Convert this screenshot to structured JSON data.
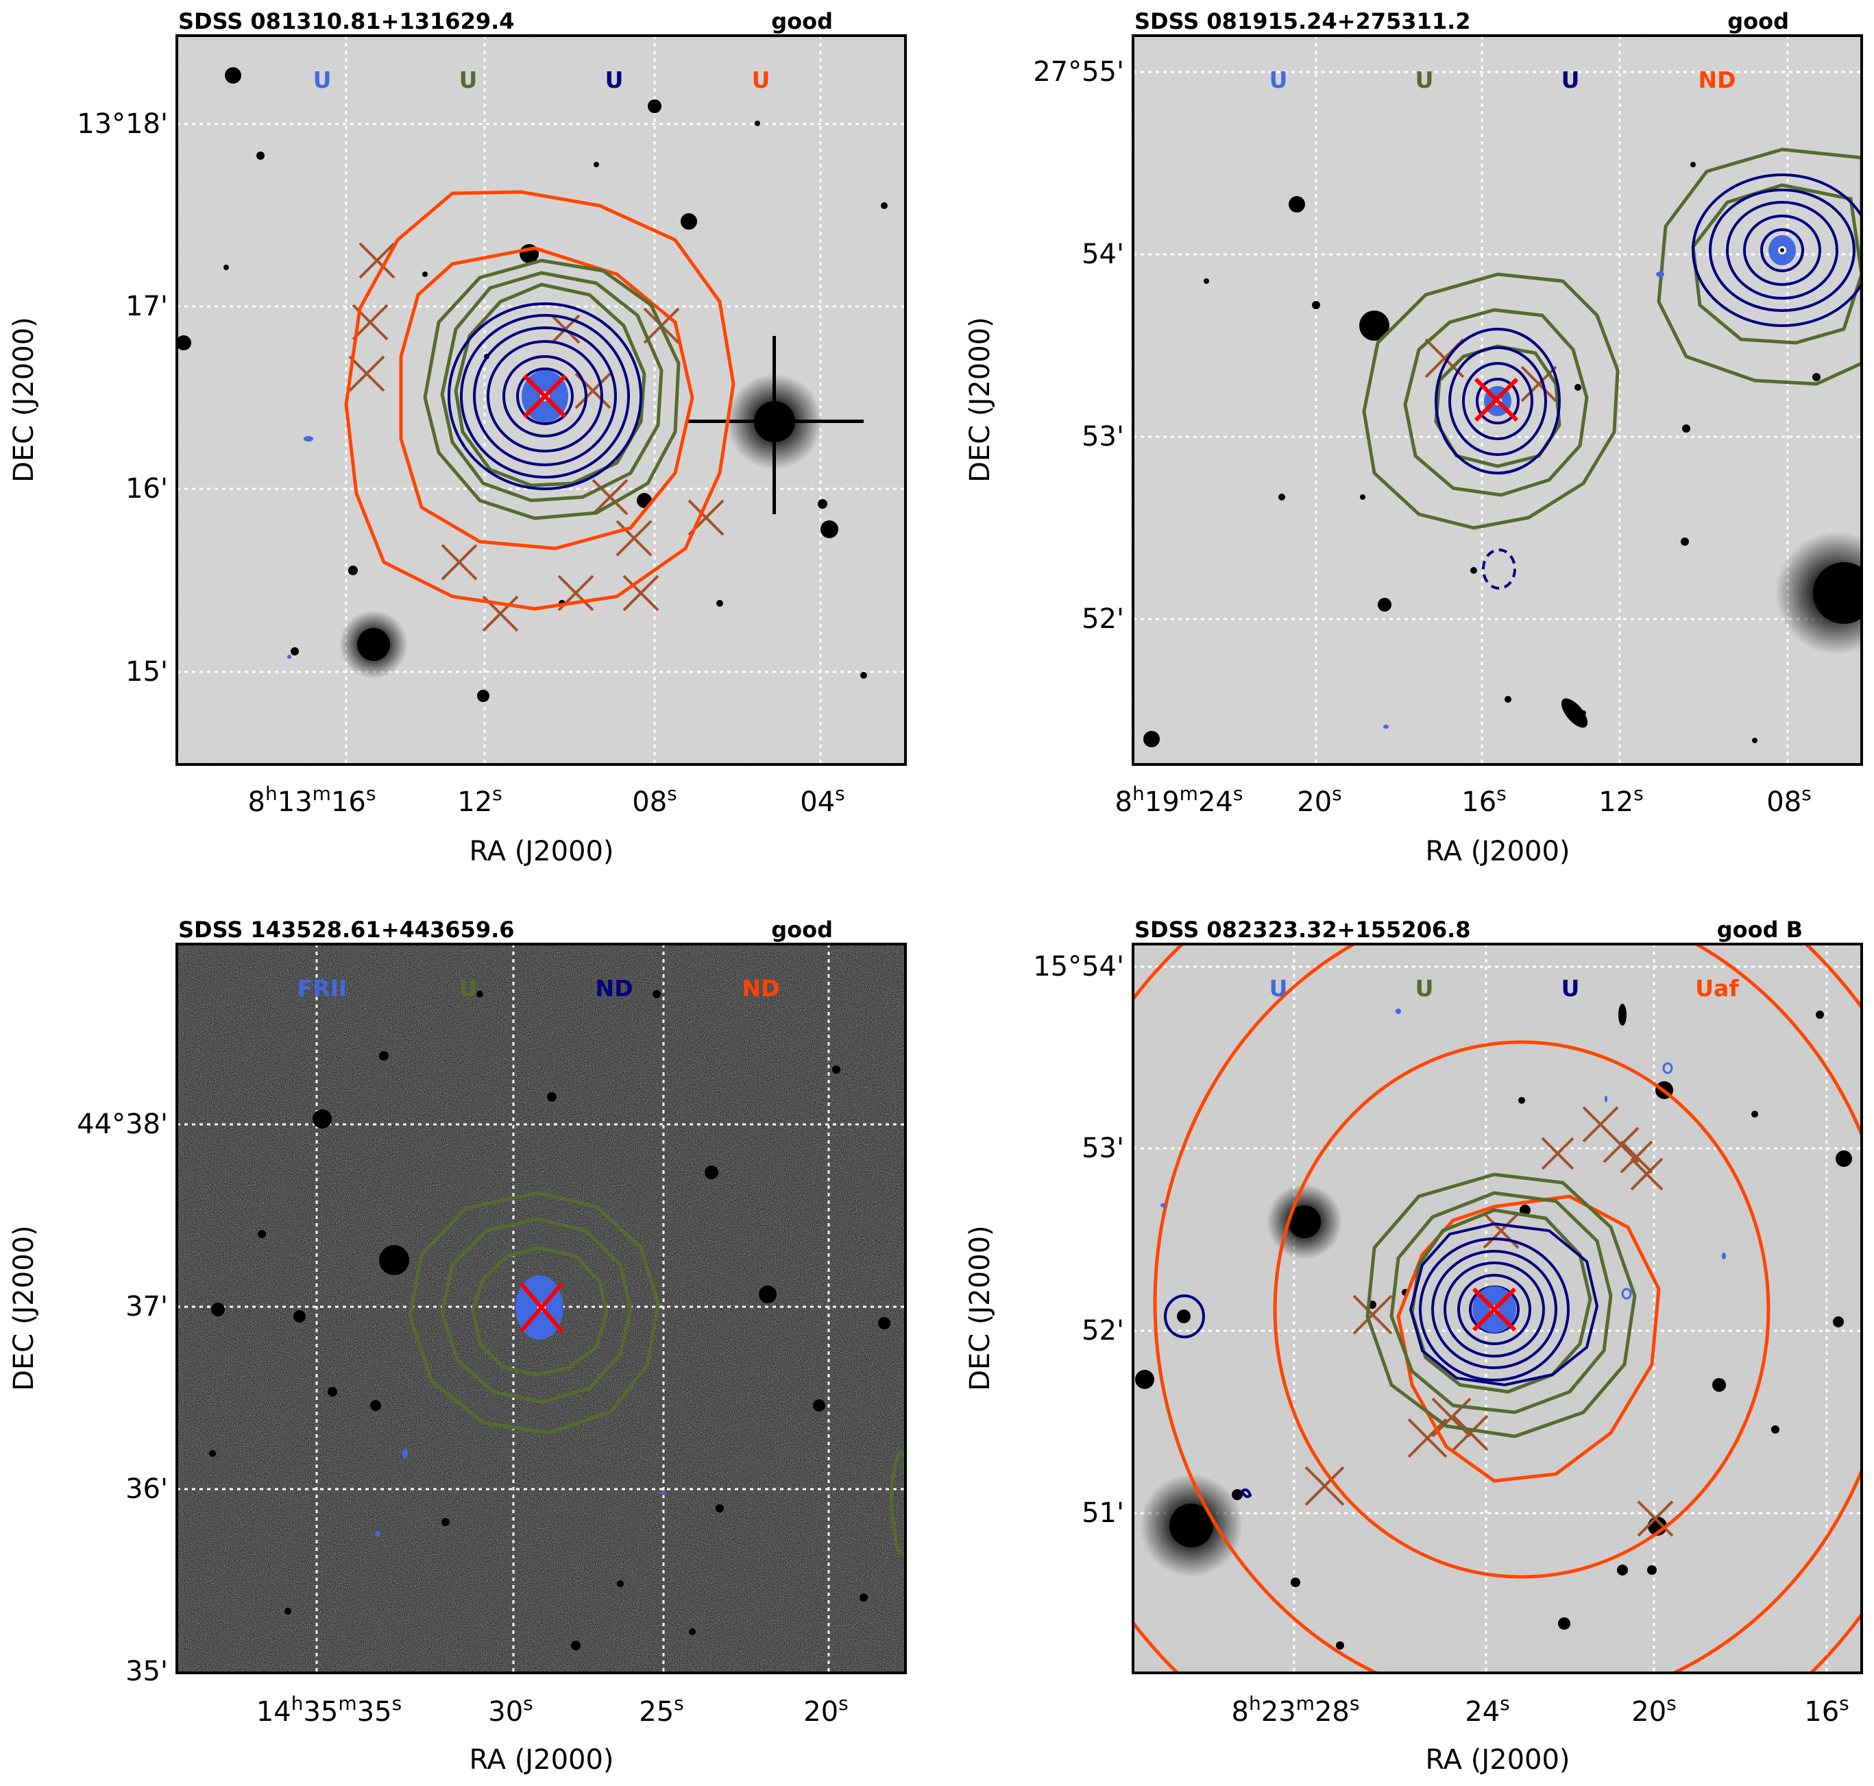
{
  "colors": {
    "radio": "#4169e1",
    "green": "#556b2f",
    "navy": "#000080",
    "orange": "#ff4500",
    "cross_brown": "#a0522d",
    "cross_red": "#ff0000",
    "sky": "#d9d9d9"
  },
  "panels": [
    {
      "id": "p1",
      "title": "SDSS 081310.81+131629.4",
      "quality": "good",
      "flags": [
        "U",
        "U",
        "U",
        "U"
      ],
      "ra_ticks": [
        {
          "h": "8",
          "m": "13",
          "s": "16"
        },
        {
          "s": "12"
        },
        {
          "s": "08"
        },
        {
          "s": "04"
        }
      ],
      "dec_ticks": [
        "13°18'",
        "17'",
        "16'",
        "15'"
      ],
      "xlabel": "RA (J2000)",
      "ylabel": "DEC (J2000)"
    },
    {
      "id": "p2",
      "title": "SDSS 081915.24+275311.2",
      "quality": "good",
      "flags": [
        "U",
        "U",
        "U",
        "ND"
      ],
      "ra_ticks": [
        {
          "h": "8",
          "m": "19",
          "s": "24"
        },
        {
          "s": "20"
        },
        {
          "s": "16"
        },
        {
          "s": "12"
        },
        {
          "s": "08"
        }
      ],
      "dec_ticks": [
        "27°55'",
        "54'",
        "53'",
        "52'"
      ],
      "xlabel": "RA (J2000)",
      "ylabel": "DEC (J2000)"
    },
    {
      "id": "p3",
      "title": "SDSS 143528.61+443659.6",
      "quality": "good",
      "flags": [
        "FRII",
        "U",
        "ND",
        "ND"
      ],
      "ra_ticks": [
        {
          "h": "14",
          "m": "35",
          "s": "35"
        },
        {
          "s": "30"
        },
        {
          "s": "25"
        },
        {
          "s": "20"
        }
      ],
      "dec_ticks": [
        "44°38'",
        "37'",
        "36'",
        "35'"
      ],
      "xlabel": "RA (J2000)",
      "ylabel": "DEC (J2000)"
    },
    {
      "id": "p4",
      "title": "SDSS 082323.32+155206.8",
      "quality": "good B",
      "flags": [
        "U",
        "U",
        "U",
        "Uaf"
      ],
      "ra_ticks": [
        {
          "h": "8",
          "m": "23",
          "s": "28"
        },
        {
          "s": "24"
        },
        {
          "s": "20"
        },
        {
          "s": "16"
        }
      ],
      "dec_ticks": [
        "15°54'",
        "53'",
        "52'",
        "51'"
      ],
      "xlabel": "RA (J2000)",
      "ylabel": "DEC (J2000)"
    }
  ]
}
